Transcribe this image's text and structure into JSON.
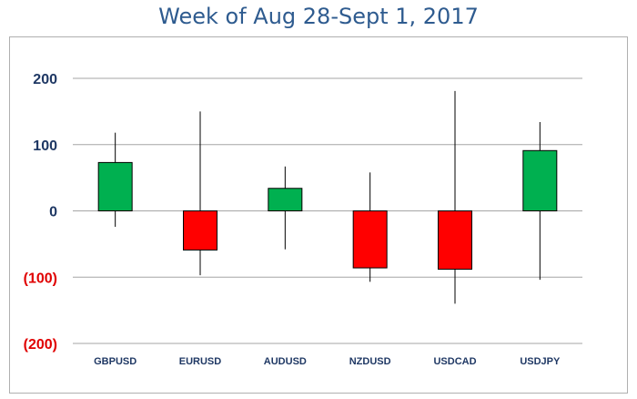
{
  "title": "Week of Aug 28-Sept 1, 2017",
  "chart_data": {
    "type": "candlestick",
    "title": "Week of Aug 28-Sept 1, 2017",
    "xlabel": "",
    "ylabel": "",
    "ylim": [
      -200,
      200
    ],
    "grid": true,
    "categories": [
      "GBPUSD",
      "EURUSD",
      "AUDUSD",
      "NZDUSD",
      "USDCAD",
      "USDJPY"
    ],
    "y_tick_labels": [
      {
        "value": 200,
        "label": "200",
        "color": "#1f3864"
      },
      {
        "value": 100,
        "label": "100",
        "color": "#1f3864"
      },
      {
        "value": 0,
        "label": "0",
        "color": "#1f3864"
      },
      {
        "value": -100,
        "label": "(100)",
        "color": "#e00000"
      },
      {
        "value": -200,
        "label": "(200)",
        "color": "#e00000"
      }
    ],
    "candles": [
      {
        "category": "GBPUSD",
        "open": 0,
        "close": 73,
        "high": 118,
        "low": -24
      },
      {
        "category": "EURUSD",
        "open": 0,
        "close": -59,
        "high": 150,
        "low": -97
      },
      {
        "category": "AUDUSD",
        "open": 0,
        "close": 34,
        "high": 67,
        "low": -58
      },
      {
        "category": "NZDUSD",
        "open": 0,
        "close": -86,
        "high": 58,
        "low": -107
      },
      {
        "category": "USDCAD",
        "open": 0,
        "close": -88,
        "high": 181,
        "low": -140
      },
      {
        "category": "USDJPY",
        "open": 0,
        "close": 91,
        "high": 134,
        "low": -104
      }
    ],
    "colors": {
      "up": "#00b050",
      "down": "#ff0000",
      "gridline": "#a6a6a6",
      "wick": "#000000",
      "border": "#000000"
    }
  }
}
